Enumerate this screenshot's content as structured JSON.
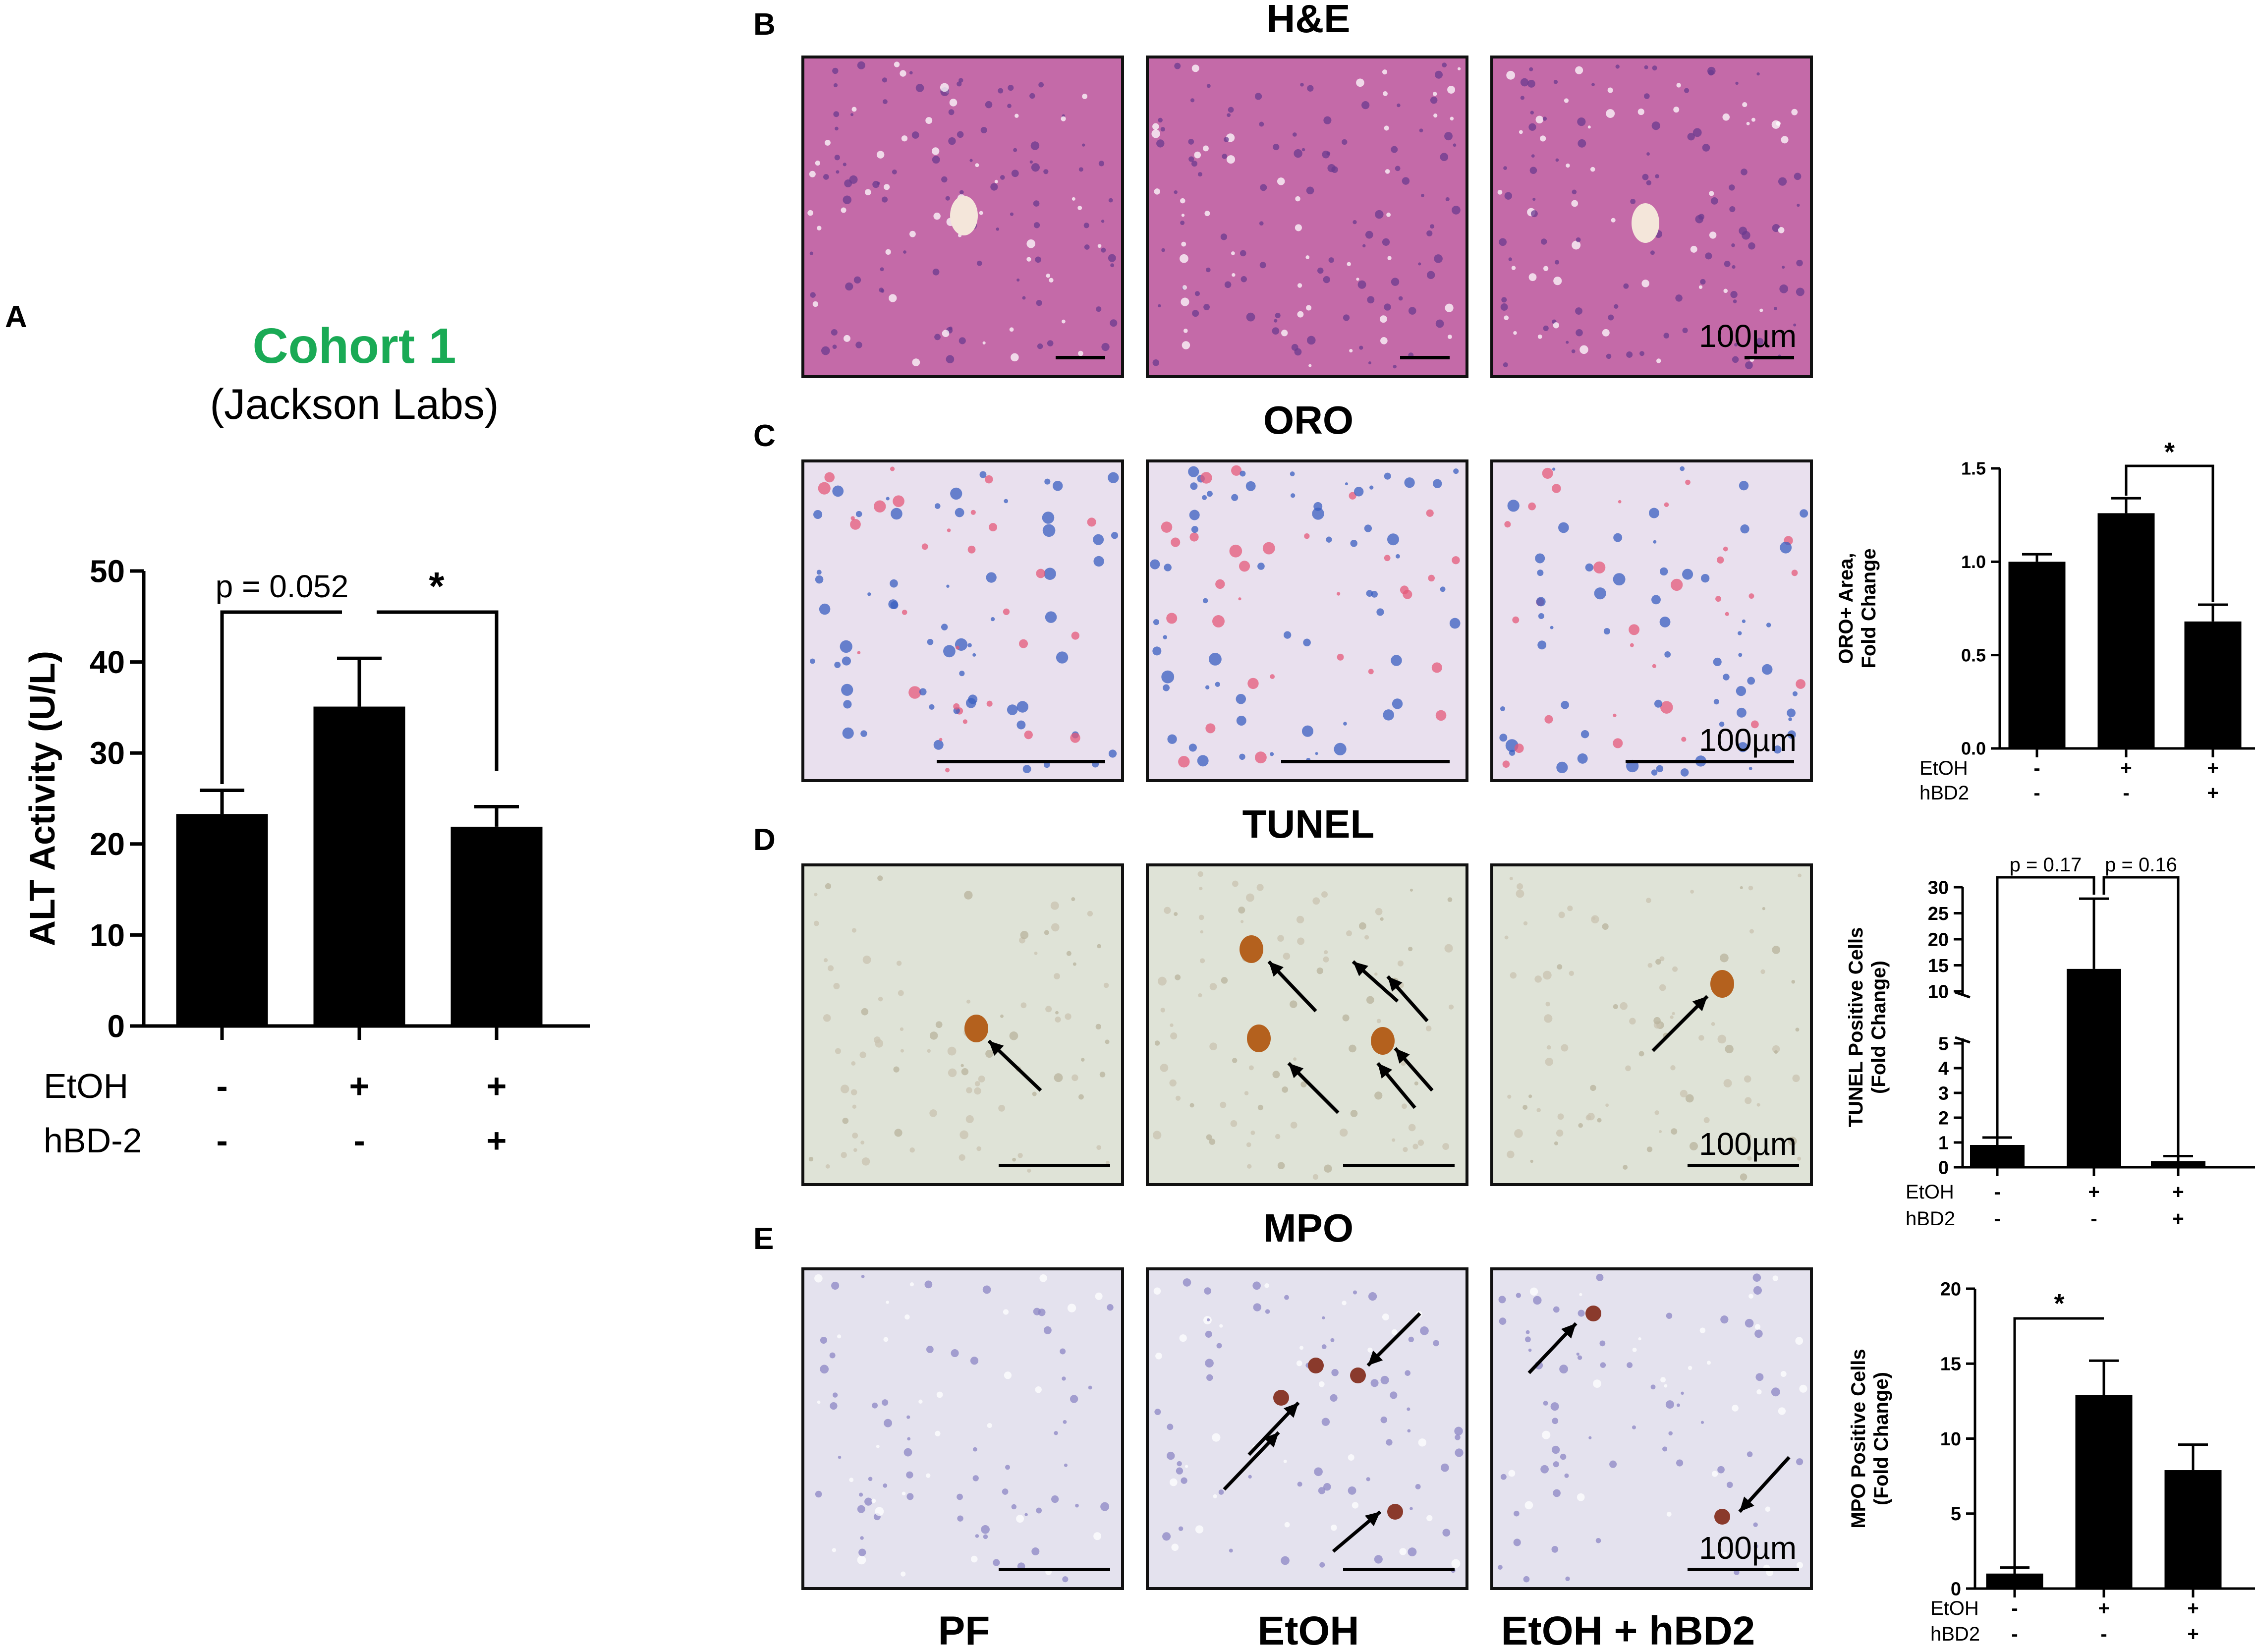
{
  "panel_letters": {
    "a": "A",
    "b": "B",
    "c": "C",
    "d": "D",
    "e": "E"
  },
  "cohort": {
    "title": "Cohort 1",
    "subtitle": "(Jackson Labs)",
    "title_color": "#1aaa55"
  },
  "row_titles": {
    "he": "H&E",
    "oro": "ORO",
    "tunel": "TUNEL",
    "mpo": "MPO"
  },
  "column_labels": [
    "PF",
    "EtOH",
    "EtOH + hBD2"
  ],
  "scale_bar_label": "100µm",
  "tissue_colors": {
    "he": "#c46aa8",
    "oro": "#e9e0ee",
    "tunel": "#dfe3d7",
    "mpo": "#e4e2ee"
  },
  "chart_data": [
    {
      "id": "A",
      "type": "bar",
      "categories": [
        "PF",
        "EtOH",
        "EtOH + hBD2"
      ],
      "values": [
        23.3,
        35.1,
        21.9
      ],
      "errors": [
        2.6,
        5.3,
        2.2
      ],
      "ylabel": "ALT Activity (U/L)",
      "ylim": [
        0,
        50
      ],
      "yticks": [
        0,
        10,
        20,
        30,
        40,
        50
      ],
      "factors": [
        {
          "name": "EtOH",
          "levels": [
            "-",
            "+",
            "+"
          ]
        },
        {
          "name": "hBD-2",
          "levels": [
            "-",
            "-",
            "+"
          ]
        }
      ],
      "brackets": [
        {
          "from": 0,
          "to": 1,
          "label": "p = 0.052"
        },
        {
          "from": 1,
          "to": 2,
          "label": "*"
        }
      ]
    },
    {
      "id": "C",
      "type": "bar",
      "categories": [
        "PF",
        "EtOH",
        "EtOH + hBD2"
      ],
      "values": [
        1.0,
        1.26,
        0.68
      ],
      "errors": [
        0.04,
        0.08,
        0.09
      ],
      "ylabel": "ORO+ Area, Fold Change",
      "ylim": [
        0,
        1.5
      ],
      "yticks": [
        "0.0",
        "0.5",
        "1.0",
        "1.5"
      ],
      "factors": [
        {
          "name": "EtOH",
          "levels": [
            "-",
            "+",
            "+"
          ]
        },
        {
          "name": "hBD2",
          "levels": [
            "-",
            "-",
            "+"
          ]
        }
      ],
      "brackets": [
        {
          "from": 1,
          "to": 2,
          "label": "*"
        }
      ]
    },
    {
      "id": "D",
      "type": "bar",
      "categories": [
        "PF",
        "EtOH",
        "EtOH + hBD2"
      ],
      "values": [
        0.9,
        14.3,
        0.25
      ],
      "errors": [
        0.3,
        13.5,
        0.2
      ],
      "ylabel": "TUNEL Positive Cells (Fold Change)",
      "ylim": [
        0,
        30
      ],
      "axis_break": [
        5,
        10
      ],
      "yticks_lower": [
        0,
        1,
        2,
        3,
        4,
        5
      ],
      "yticks_upper": [
        10,
        15,
        20,
        25,
        30
      ],
      "factors": [
        {
          "name": "EtOH",
          "levels": [
            "-",
            "+",
            "+"
          ]
        },
        {
          "name": "hBD2",
          "levels": [
            "-",
            "-",
            "+"
          ]
        }
      ],
      "brackets": [
        {
          "from": 0,
          "to": 1,
          "label": "p = 0.17"
        },
        {
          "from": 1,
          "to": 2,
          "label": "p = 0.16"
        }
      ]
    },
    {
      "id": "E",
      "type": "bar",
      "categories": [
        "PF",
        "EtOH",
        "EtOH + hBD2"
      ],
      "values": [
        1.0,
        12.9,
        7.9
      ],
      "errors": [
        0.4,
        2.3,
        1.7
      ],
      "ylabel": "MPO Positive Cells (Fold Change)",
      "ylim": [
        0,
        20
      ],
      "yticks": [
        0,
        5,
        10,
        15,
        20
      ],
      "factors": [
        {
          "name": "EtOH",
          "levels": [
            "-",
            "+",
            "+"
          ]
        },
        {
          "name": "hBD2",
          "levels": [
            "-",
            "-",
            "+"
          ]
        }
      ],
      "brackets": [
        {
          "from": 0,
          "to": 1,
          "label": "*"
        }
      ]
    }
  ]
}
